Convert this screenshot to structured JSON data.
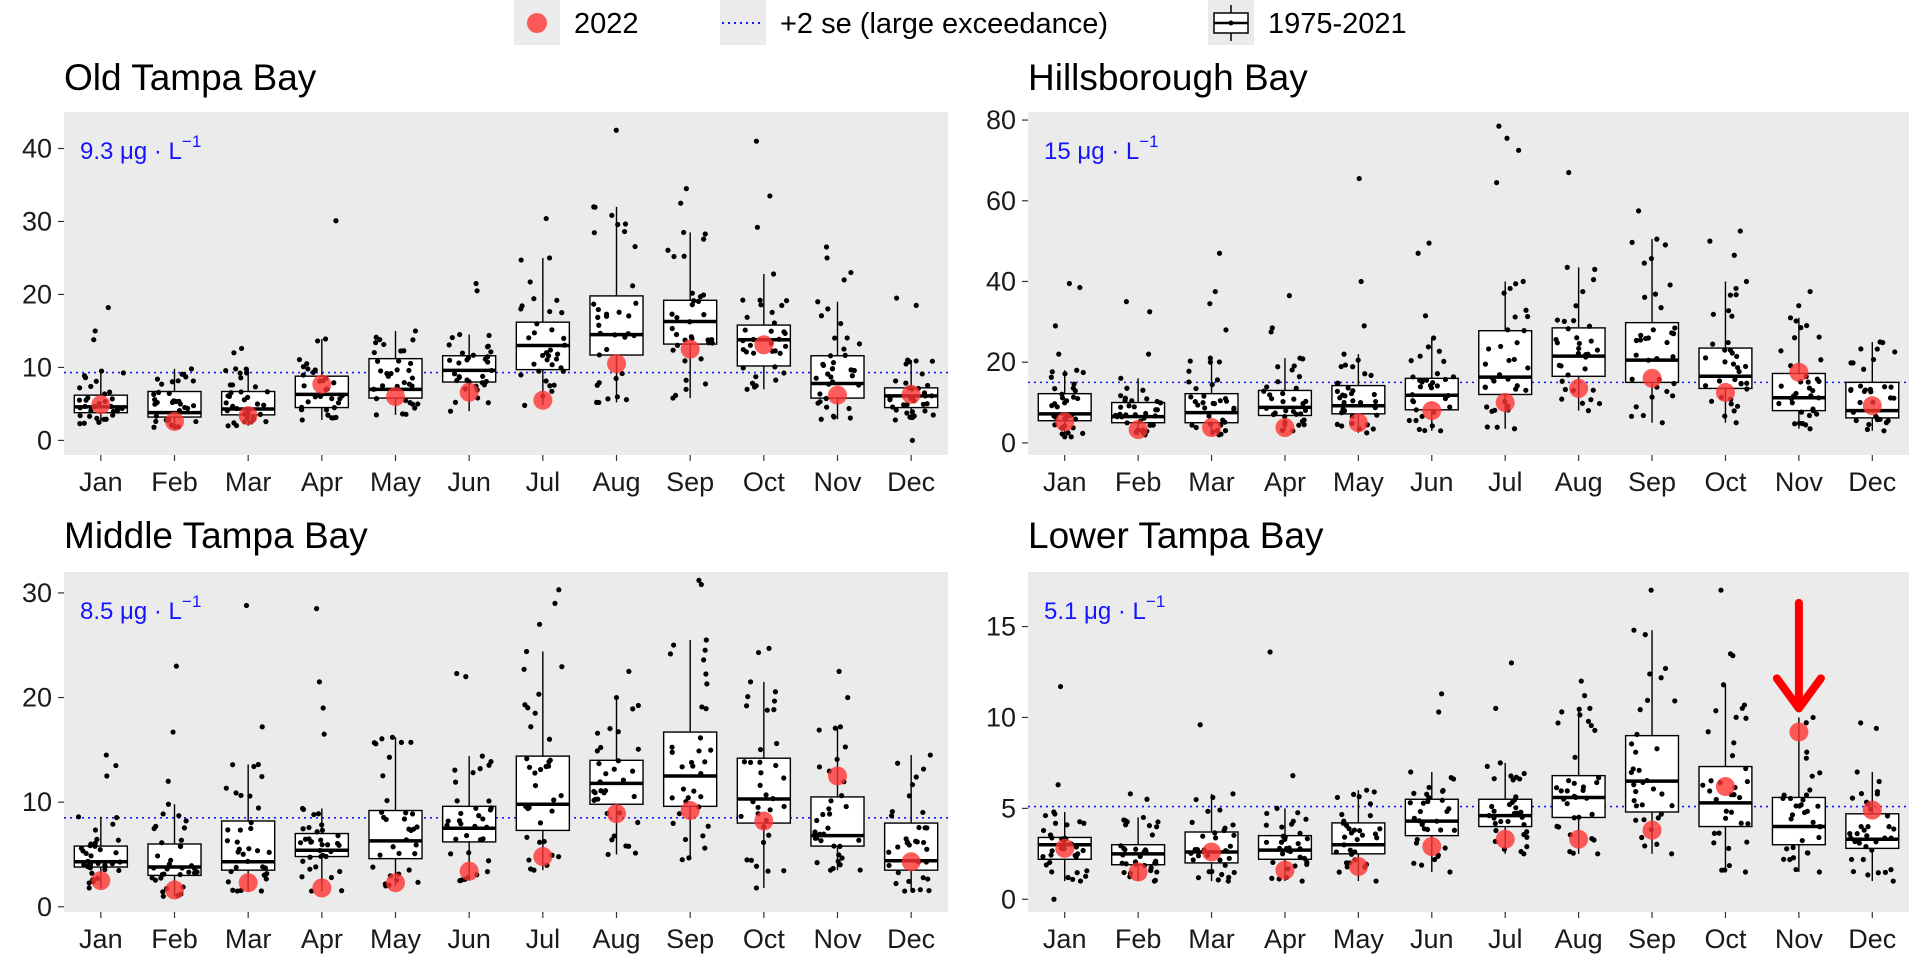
{
  "legend": {
    "items": [
      {
        "label": "2022",
        "kind": "point"
      },
      {
        "label": "+2 se (large exceedance)",
        "kind": "line"
      },
      {
        "label": "1975-2021",
        "kind": "boxplot"
      }
    ]
  },
  "colors": {
    "panel_bg": "#ebebeb",
    "point_2022": "#ff3333",
    "threshold": "#1414ff",
    "box_line": "#000000",
    "jitter": "#000000",
    "arrow": "#ff0000"
  },
  "chart_data": [
    {
      "type": "boxplot",
      "title": "Old Tampa Bay",
      "threshold": {
        "value": 9.3,
        "label_value": "9.3",
        "unit": "μg · L",
        "exp": "−1"
      },
      "ylim": [
        -2,
        45
      ],
      "yticks": [
        0,
        10,
        20,
        30,
        40
      ],
      "categories": [
        "Jan",
        "Feb",
        "Mar",
        "Apr",
        "May",
        "Jun",
        "Jul",
        "Aug",
        "Sep",
        "Oct",
        "Nov",
        "Dec"
      ],
      "boxes": [
        {
          "q1": 3.8,
          "median": 4.6,
          "q3": 6.2,
          "whisk_lo": 2.3,
          "whisk_hi": 9.5,
          "outliers": [
            13.8,
            15,
            18.2
          ]
        },
        {
          "q1": 3.2,
          "median": 3.8,
          "q3": 6.7,
          "whisk_lo": 1.8,
          "whisk_hi": 9.8,
          "outliers": []
        },
        {
          "q1": 3.5,
          "median": 4.3,
          "q3": 6.7,
          "whisk_lo": 2.0,
          "whisk_hi": 9.8,
          "outliers": [
            12,
            12.6
          ]
        },
        {
          "q1": 4.5,
          "median": 6.3,
          "q3": 8.8,
          "whisk_lo": 2.8,
          "whisk_hi": 13.9,
          "outliers": [
            30.1
          ]
        },
        {
          "q1": 5.8,
          "median": 7.0,
          "q3": 11.2,
          "whisk_lo": 3.5,
          "whisk_hi": 15.0,
          "outliers": []
        },
        {
          "q1": 8.0,
          "median": 9.6,
          "q3": 11.6,
          "whisk_lo": 4.0,
          "whisk_hi": 14.5,
          "outliers": [
            21.5,
            20.5
          ]
        },
        {
          "q1": 9.7,
          "median": 13.0,
          "q3": 16.2,
          "whisk_lo": 4.8,
          "whisk_hi": 25.0,
          "outliers": [
            30.4
          ]
        },
        {
          "q1": 11.7,
          "median": 14.5,
          "q3": 19.8,
          "whisk_lo": 5.2,
          "whisk_hi": 32.0,
          "outliers": [
            42.5
          ]
        },
        {
          "q1": 13.2,
          "median": 16.3,
          "q3": 19.2,
          "whisk_lo": 5.8,
          "whisk_hi": 28.5,
          "outliers": [
            34.5,
            32.5
          ]
        },
        {
          "q1": 10.2,
          "median": 13.8,
          "q3": 15.8,
          "whisk_lo": 7.0,
          "whisk_hi": 22.8,
          "outliers": [
            41,
            33.5,
            29.2
          ]
        },
        {
          "q1": 5.8,
          "median": 7.8,
          "q3": 11.6,
          "whisk_lo": 2.9,
          "whisk_hi": 19.0,
          "outliers": [
            26.5,
            25,
            23,
            22
          ]
        },
        {
          "q1": 4.5,
          "median": 6.1,
          "q3": 7.2,
          "whisk_lo": 2.8,
          "whisk_hi": 11.0,
          "outliers": [
            19.5,
            18.5,
            0
          ]
        }
      ],
      "points_2022": [
        4.9,
        2.6,
        3.4,
        7.7,
        6.0,
        6.6,
        5.5,
        10.5,
        12.5,
        13.1,
        6.2,
        6.3
      ]
    },
    {
      "type": "boxplot",
      "title": "Hillsborough Bay",
      "threshold": {
        "value": 15,
        "label_value": "15",
        "unit": "μg · L",
        "exp": "−1"
      },
      "ylim": [
        -3,
        82
      ],
      "yticks": [
        0,
        20,
        40,
        60,
        80
      ],
      "categories": [
        "Jan",
        "Feb",
        "Mar",
        "Apr",
        "May",
        "Jun",
        "Jul",
        "Aug",
        "Sep",
        "Oct",
        "Nov",
        "Dec"
      ],
      "boxes": [
        {
          "q1": 5.5,
          "median": 7.2,
          "q3": 12.2,
          "whisk_lo": 1.5,
          "whisk_hi": 18.0,
          "outliers": [
            38.5,
            39.5,
            29,
            22
          ]
        },
        {
          "q1": 5.0,
          "median": 6.5,
          "q3": 10.0,
          "whisk_lo": 2.0,
          "whisk_hi": 16.0,
          "outliers": [
            32.5,
            35.0,
            22.0
          ]
        },
        {
          "q1": 5.0,
          "median": 7.5,
          "q3": 12.2,
          "whisk_lo": 2.0,
          "whisk_hi": 21.0,
          "outliers": [
            47,
            37.5,
            34.5,
            28
          ]
        },
        {
          "q1": 6.8,
          "median": 8.8,
          "q3": 13.0,
          "whisk_lo": 3.0,
          "whisk_hi": 21.0,
          "outliers": [
            36.5,
            28.5,
            27.5
          ]
        },
        {
          "q1": 7.2,
          "median": 9.2,
          "q3": 14.2,
          "whisk_lo": 2.5,
          "whisk_hi": 22.0,
          "outliers": [
            65.5,
            40,
            29
          ]
        },
        {
          "q1": 8.2,
          "median": 11.8,
          "q3": 16.0,
          "whisk_lo": 3.0,
          "whisk_hi": 26.0,
          "outliers": [
            49.5,
            47,
            31.5
          ]
        },
        {
          "q1": 12.0,
          "median": 16.3,
          "q3": 27.8,
          "whisk_lo": 3.5,
          "whisk_hi": 40.0,
          "outliers": [
            78.5,
            75.5,
            72.5,
            64.5
          ]
        },
        {
          "q1": 16.5,
          "median": 21.5,
          "q3": 28.5,
          "whisk_lo": 8.0,
          "whisk_hi": 43.5,
          "outliers": [
            67
          ]
        },
        {
          "q1": 15.0,
          "median": 20.5,
          "q3": 29.8,
          "whisk_lo": 5.0,
          "whisk_hi": 50.5,
          "outliers": [
            57.5
          ]
        },
        {
          "q1": 13.5,
          "median": 16.5,
          "q3": 23.5,
          "whisk_lo": 5.0,
          "whisk_hi": 40.0,
          "outliers": [
            52.5,
            50,
            46.5
          ]
        },
        {
          "q1": 8.0,
          "median": 11.2,
          "q3": 17.2,
          "whisk_lo": 3.5,
          "whisk_hi": 31.0,
          "outliers": [
            37.5,
            34
          ]
        },
        {
          "q1": 6.2,
          "median": 8.0,
          "q3": 15.0,
          "whisk_lo": 3.0,
          "whisk_hi": 25.0,
          "outliers": []
        }
      ],
      "points_2022": [
        5.2,
        3.3,
        3.8,
        3.8,
        5.0,
        8.0,
        10.0,
        13.5,
        16.0,
        12.5,
        17.5,
        9.2
      ]
    },
    {
      "type": "boxplot",
      "title": "Middle Tampa Bay",
      "threshold": {
        "value": 8.5,
        "label_value": "8.5",
        "unit": "μg · L",
        "exp": "−1"
      },
      "ylim": [
        -0.5,
        32
      ],
      "yticks": [
        0,
        10,
        20,
        30
      ],
      "categories": [
        "Jan",
        "Feb",
        "Mar",
        "Apr",
        "May",
        "Jun",
        "Jul",
        "Aug",
        "Sep",
        "Oct",
        "Nov",
        "Dec"
      ],
      "boxes": [
        {
          "q1": 3.8,
          "median": 4.3,
          "q3": 5.8,
          "whisk_lo": 1.8,
          "whisk_hi": 8.6,
          "outliers": [
            14.5,
            13.5,
            12.5
          ]
        },
        {
          "q1": 3.0,
          "median": 3.8,
          "q3": 6.0,
          "whisk_lo": 1.0,
          "whisk_hi": 9.8,
          "outliers": [
            23,
            16.7,
            12
          ]
        },
        {
          "q1": 3.5,
          "median": 4.3,
          "q3": 8.2,
          "whisk_lo": 1.5,
          "whisk_hi": 13.6,
          "outliers": [
            28.8,
            17.2
          ]
        },
        {
          "q1": 4.8,
          "median": 5.4,
          "q3": 7.0,
          "whisk_lo": 1.5,
          "whisk_hi": 9.4,
          "outliers": [
            28.5,
            21.5,
            19,
            16.5
          ]
        },
        {
          "q1": 4.6,
          "median": 6.3,
          "q3": 9.2,
          "whisk_lo": 2.0,
          "whisk_hi": 16.2,
          "outliers": []
        },
        {
          "q1": 6.2,
          "median": 7.5,
          "q3": 9.6,
          "whisk_lo": 2.5,
          "whisk_hi": 14.4,
          "outliers": [
            22.3,
            22
          ]
        },
        {
          "q1": 7.3,
          "median": 9.8,
          "q3": 14.4,
          "whisk_lo": 3.5,
          "whisk_hi": 24.4,
          "outliers": [
            30.3,
            29,
            27
          ]
        },
        {
          "q1": 9.8,
          "median": 11.8,
          "q3": 14.0,
          "whisk_lo": 5.0,
          "whisk_hi": 20.0,
          "outliers": [
            22.5
          ]
        },
        {
          "q1": 9.6,
          "median": 12.5,
          "q3": 16.7,
          "whisk_lo": 4.5,
          "whisk_hi": 25.5,
          "outliers": [
            31.2,
            30.8
          ]
        },
        {
          "q1": 8.0,
          "median": 10.3,
          "q3": 14.2,
          "whisk_lo": 1.8,
          "whisk_hi": 21.5,
          "outliers": [
            24.7,
            24.3
          ]
        },
        {
          "q1": 5.8,
          "median": 6.8,
          "q3": 10.5,
          "whisk_lo": 3.5,
          "whisk_hi": 17.2,
          "outliers": [
            22.5,
            20
          ]
        },
        {
          "q1": 3.5,
          "median": 4.4,
          "q3": 8.0,
          "whisk_lo": 1.5,
          "whisk_hi": 14.5,
          "outliers": []
        }
      ],
      "points_2022": [
        2.5,
        1.6,
        2.3,
        1.8,
        2.3,
        3.4,
        4.8,
        8.9,
        9.2,
        8.2,
        12.5,
        4.3
      ]
    },
    {
      "type": "boxplot",
      "title": "Lower Tampa Bay",
      "threshold": {
        "value": 5.1,
        "label_value": "5.1",
        "unit": "μg · L",
        "exp": "−1"
      },
      "ylim": [
        -0.7,
        18
      ],
      "yticks": [
        0,
        5,
        10,
        15
      ],
      "categories": [
        "Jan",
        "Feb",
        "Mar",
        "Apr",
        "May",
        "Jun",
        "Jul",
        "Aug",
        "Sep",
        "Oct",
        "Nov",
        "Dec"
      ],
      "boxes": [
        {
          "q1": 2.2,
          "median": 3.0,
          "q3": 3.4,
          "whisk_lo": 1.0,
          "whisk_hi": 4.8,
          "outliers": [
            11.7,
            6.3,
            0
          ]
        },
        {
          "q1": 1.9,
          "median": 2.5,
          "q3": 3.0,
          "whisk_lo": 1.0,
          "whisk_hi": 4.5,
          "outliers": [
            5.8,
            5.5
          ]
        },
        {
          "q1": 2.0,
          "median": 2.6,
          "q3": 3.7,
          "whisk_lo": 1.0,
          "whisk_hi": 5.8,
          "outliers": [
            9.6
          ]
        },
        {
          "q1": 2.2,
          "median": 2.7,
          "q3": 3.5,
          "whisk_lo": 1.0,
          "whisk_hi": 5.0,
          "outliers": [
            13.6,
            6.8
          ]
        },
        {
          "q1": 2.5,
          "median": 3.0,
          "q3": 4.2,
          "whisk_lo": 1.0,
          "whisk_hi": 6.0,
          "outliers": []
        },
        {
          "q1": 3.5,
          "median": 4.3,
          "q3": 5.5,
          "whisk_lo": 1.5,
          "whisk_hi": 7.0,
          "outliers": [
            11.3,
            10.3
          ]
        },
        {
          "q1": 4.0,
          "median": 4.6,
          "q3": 5.5,
          "whisk_lo": 2.5,
          "whisk_hi": 7.5,
          "outliers": [
            13,
            10.5
          ]
        },
        {
          "q1": 4.5,
          "median": 5.6,
          "q3": 6.8,
          "whisk_lo": 2.5,
          "whisk_hi": 10.5,
          "outliers": [
            12,
            11.2
          ]
        },
        {
          "q1": 4.8,
          "median": 6.5,
          "q3": 9.0,
          "whisk_lo": 2.5,
          "whisk_hi": 14.8,
          "outliers": [
            17
          ]
        },
        {
          "q1": 4.0,
          "median": 5.3,
          "q3": 7.3,
          "whisk_lo": 1.5,
          "whisk_hi": 11.8,
          "outliers": [
            17,
            13.5,
            13.4
          ]
        },
        {
          "q1": 3.0,
          "median": 4.0,
          "q3": 5.6,
          "whisk_lo": 1.5,
          "whisk_hi": 10.0,
          "outliers": []
        },
        {
          "q1": 2.8,
          "median": 3.3,
          "q3": 4.7,
          "whisk_lo": 1.0,
          "whisk_hi": 7.0,
          "outliers": [
            9.7,
            9.4
          ]
        }
      ],
      "points_2022": [
        2.8,
        1.5,
        2.6,
        1.6,
        1.8,
        2.9,
        3.3,
        3.3,
        3.8,
        6.2,
        9.2,
        4.9
      ],
      "annotation": {
        "type": "arrow",
        "category": "Nov",
        "from": 16.3,
        "to": 10.5
      }
    }
  ]
}
